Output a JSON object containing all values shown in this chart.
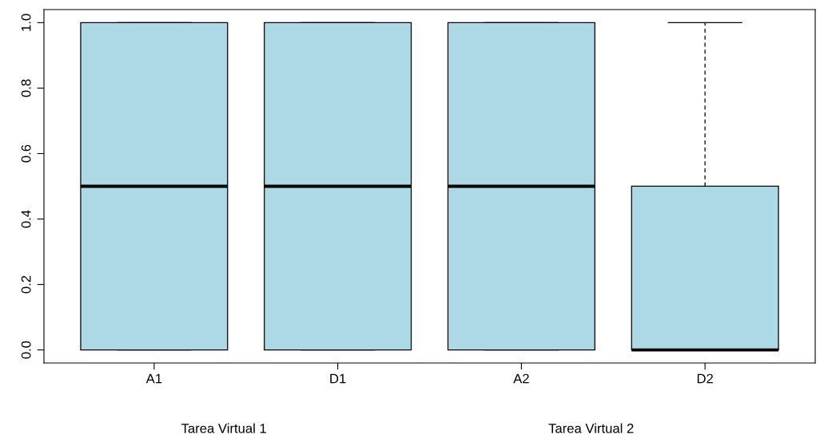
{
  "chart_data": {
    "type": "box",
    "categories": [
      "A1",
      "D1",
      "A2",
      "D2"
    ],
    "series": [
      {
        "color": "#add8e6",
        "boxes": [
          {
            "low": 0,
            "q1": 0,
            "median": 0.5,
            "q3": 1,
            "high": 1
          },
          {
            "low": 0,
            "q1": 0,
            "median": 0.5,
            "q3": 1,
            "high": 1
          },
          {
            "low": 0,
            "q1": 0,
            "median": 0.5,
            "q3": 1,
            "high": 1
          },
          {
            "low": 0,
            "q1": 0,
            "median": 0,
            "q3": 0.5,
            "high": 1
          }
        ]
      }
    ],
    "ylim": [
      -0.04,
      1.04
    ],
    "yticks": [
      {
        "value": 0,
        "label": "0.0"
      },
      {
        "value": 0.2,
        "label": "0.2"
      },
      {
        "value": 0.4,
        "label": "0.4"
      },
      {
        "value": 0.6,
        "label": "0.6"
      },
      {
        "value": 0.8,
        "label": "0.8"
      },
      {
        "value": 1,
        "label": "1.0"
      }
    ],
    "grid": false,
    "legend": false,
    "annotations": [
      "Tarea Virtual 1",
      "Tarea Virtual 2"
    ]
  }
}
